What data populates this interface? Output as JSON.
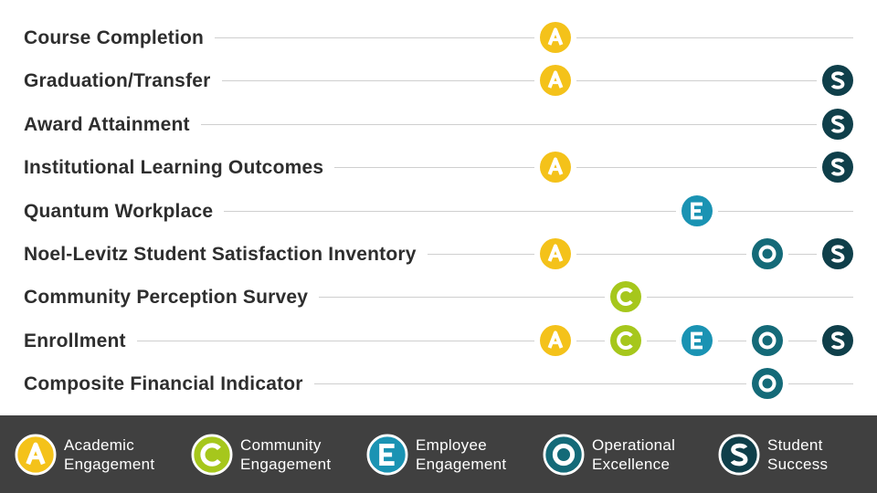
{
  "categories": {
    "academic": {
      "legend_line1": "Academic",
      "legend_line2": "Engagement",
      "letter": "A",
      "color": "#f4c21a",
      "icon": "circle-a-icon"
    },
    "community": {
      "legend_line1": "Community",
      "legend_line2": "Engagement",
      "letter": "C",
      "color": "#a6c71c",
      "icon": "circle-c-icon"
    },
    "employee": {
      "legend_line1": "Employee",
      "legend_line2": "Engagement",
      "letter": "E",
      "color": "#1a93b3",
      "icon": "circle-e-icon"
    },
    "operational": {
      "legend_line1": "Operational",
      "legend_line2": "Excellence",
      "letter": "O",
      "color": "#146a78",
      "icon": "circle-o-icon"
    },
    "student": {
      "legend_line1": "Student",
      "legend_line2": "Success",
      "letter": "S",
      "color": "#0f3f4a",
      "icon": "circle-s-icon"
    }
  },
  "rows": [
    {
      "label": "Course Completion",
      "markers": [
        "academic"
      ]
    },
    {
      "label": "Graduation/Transfer",
      "markers": [
        "academic",
        "student"
      ]
    },
    {
      "label": "Award Attainment",
      "markers": [
        "student"
      ]
    },
    {
      "label": "Institutional Learning Outcomes",
      "markers": [
        "academic",
        "student"
      ]
    },
    {
      "label": "Quantum Workplace",
      "markers": [
        "employee"
      ]
    },
    {
      "label": "Noel-Levitz Student Satisfaction Inventory",
      "markers": [
        "academic",
        "operational",
        "student"
      ]
    },
    {
      "label": "Community Perception Survey",
      "markers": [
        "community"
      ]
    },
    {
      "label": "Enrollment",
      "markers": [
        "academic",
        "community",
        "employee",
        "operational",
        "student"
      ]
    },
    {
      "label": "Composite Financial Indicator",
      "markers": [
        "operational"
      ]
    }
  ],
  "legend_order": [
    "academic",
    "community",
    "employee",
    "operational",
    "student"
  ]
}
